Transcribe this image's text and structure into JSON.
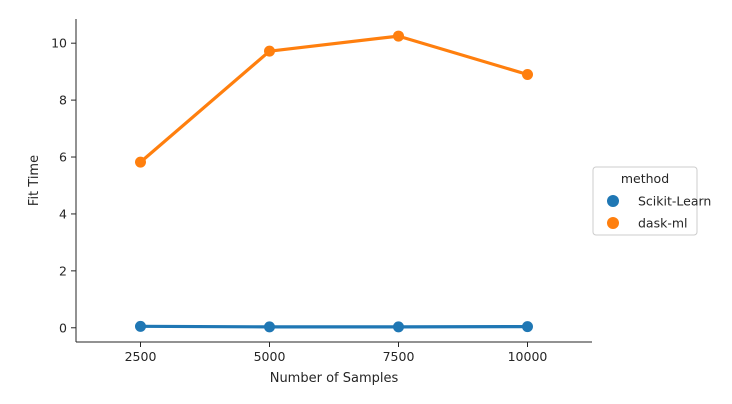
{
  "chart_data": {
    "type": "line",
    "title": "",
    "xlabel": "Number of Samples",
    "ylabel": "Fit Time",
    "categories": [
      "2500",
      "5000",
      "7500",
      "10000"
    ],
    "yticks": [
      "0",
      "2",
      "4",
      "6",
      "8",
      "10"
    ],
    "ylim": [
      -0.5,
      10.85
    ],
    "grid": false,
    "series": [
      {
        "name": "Scikit-Learn",
        "color": "#1f77b4",
        "values": [
          0.05,
          0.03,
          0.03,
          0.04
        ]
      },
      {
        "name": "dask-ml",
        "color": "#ff7f0e",
        "values": [
          5.82,
          9.72,
          10.25,
          8.9
        ]
      }
    ],
    "legend": {
      "title": "method",
      "position": "right"
    }
  }
}
